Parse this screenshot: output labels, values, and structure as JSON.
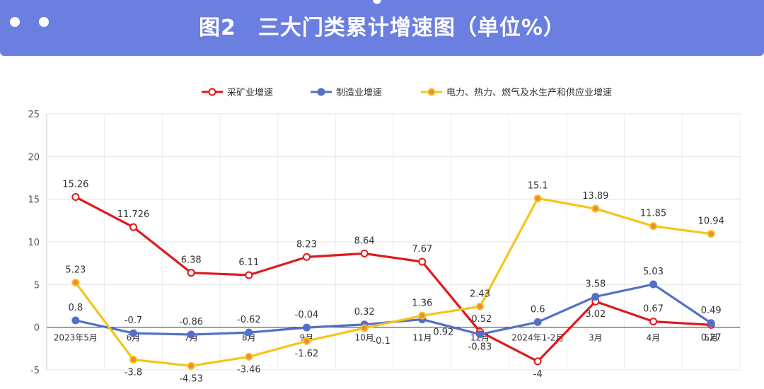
{
  "header": {
    "title": "图2　三大门类累计增速图（单位%）"
  },
  "chart_data": {
    "type": "line",
    "title": "图2　三大门类累计增速图（单位%）",
    "categories": [
      "2023年5月",
      "6月",
      "7月",
      "8月",
      "9月",
      "10月",
      "11月",
      "12月",
      "2024年1-2月",
      "3月",
      "4月",
      "5月"
    ],
    "ylim": [
      -5,
      25
    ],
    "yticks": [
      "-5",
      "0",
      "5",
      "10",
      "15",
      "20",
      "25"
    ],
    "grid": true,
    "legend_position": "top",
    "series": [
      {
        "name": "采矿业增速",
        "color": "#e0191c",
        "marker_fill": "#ffffff",
        "values": [
          15.26,
          11.726,
          6.38,
          6.11,
          8.23,
          8.64,
          7.67,
          -0.52,
          -4,
          3.02,
          0.67,
          0.27
        ],
        "labels": [
          "15.26",
          "11.726",
          "6.38",
          "6.11",
          "8.23",
          "8.64",
          "7.67",
          "-0.52",
          "-4",
          "3.02",
          "0.67",
          "0.27"
        ]
      },
      {
        "name": "制造业增速",
        "color": "#5470c6",
        "marker_fill": "#5470c6",
        "values": [
          0.8,
          -0.7,
          -0.86,
          -0.62,
          -0.04,
          0.32,
          0.92,
          -0.83,
          0.6,
          3.58,
          5.03,
          0.49
        ],
        "labels": [
          "0.8",
          "-0.7",
          "-0.86",
          "-0.62",
          "-0.04",
          "0.32",
          "0.92",
          "-0.83",
          "0.6",
          "3.58",
          "5.03",
          "0.49"
        ]
      },
      {
        "name": "电力、热力、燃气及水生产和供应业增速",
        "color": "#f5c518",
        "marker_fill": "#ed8a3f",
        "values": [
          5.23,
          -3.8,
          -4.53,
          -3.46,
          -1.62,
          -0.1,
          1.36,
          2.43,
          15.1,
          13.89,
          11.85,
          10.94
        ],
        "labels": [
          "5.23",
          "-3.8",
          "-4.53",
          "-3.46",
          "-1.62",
          "-0.1",
          "1.36",
          "2.43",
          "15.1",
          "13.89",
          "11.85",
          "10.94"
        ]
      }
    ]
  }
}
